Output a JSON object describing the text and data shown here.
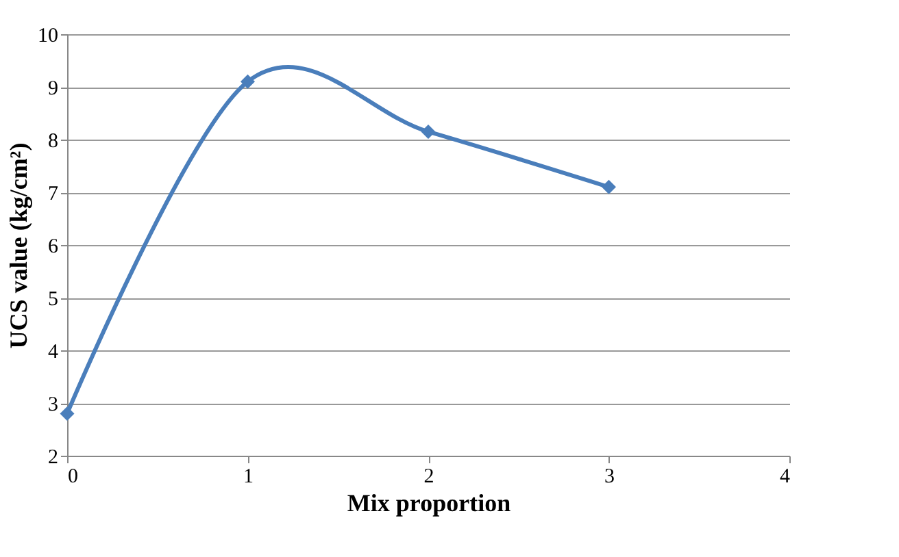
{
  "chart_data": {
    "type": "line",
    "xlabel": "Mix proportion",
    "ylabel": "UCS value (kg/cm²)",
    "x": [
      0,
      1,
      2,
      3
    ],
    "series": [
      {
        "color": "#4a7ebb",
        "values": [
          2.8,
          9.1,
          8.15,
          7.1
        ]
      }
    ],
    "xlim": [
      0,
      4
    ],
    "xticks": [
      0,
      1,
      2,
      3,
      4
    ],
    "ylim": [
      2,
      10
    ],
    "yticks": [
      2,
      3,
      4,
      5,
      6,
      7,
      8,
      9,
      10
    ],
    "grid": "y",
    "marker": "diamond",
    "line_style": "solid"
  }
}
